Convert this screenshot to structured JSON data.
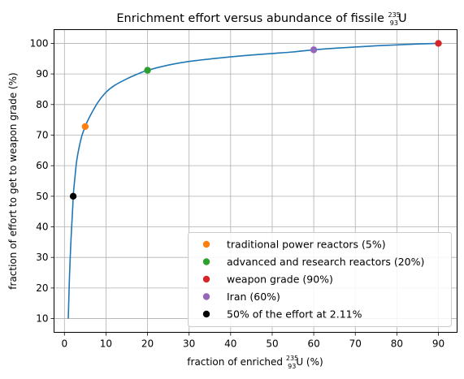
{
  "chart_data": {
    "type": "line",
    "title_main": "Enrichment effort versus abundance of fissile ",
    "title_mass": "235",
    "title_atomic": "93",
    "title_element": "U",
    "xlabel_main": "fraction of enriched ",
    "xlabel_mass": "235",
    "xlabel_atomic": "93",
    "xlabel_after": "U (%)",
    "ylabel": "fraction of effort to get to weapon grade (%)",
    "xlim": [
      -2.5,
      94.5
    ],
    "ylim": [
      5.5,
      104.5
    ],
    "xticks": [
      0,
      10,
      20,
      30,
      40,
      50,
      60,
      70,
      80,
      90
    ],
    "yticks": [
      10,
      20,
      30,
      40,
      50,
      60,
      70,
      80,
      90,
      100
    ],
    "grid": true,
    "legend_position": "lower right",
    "curve": {
      "color": "#1f77b4",
      "x": [
        0.93,
        1.0,
        1.2,
        1.5,
        2.0,
        2.11,
        2.5,
        3,
        4,
        5,
        6,
        8,
        10,
        12,
        15,
        18,
        20,
        25,
        30,
        35,
        40,
        45,
        50,
        55,
        60,
        65,
        70,
        75,
        80,
        85,
        90
      ],
      "y": [
        10.0,
        13.5,
        23.0,
        33.5,
        46.5,
        50.0,
        55.8,
        62.0,
        68.8,
        72.8,
        75.8,
        80.6,
        84.0,
        86.2,
        88.4,
        90.2,
        91.2,
        92.9,
        94.1,
        94.9,
        95.6,
        96.2,
        96.7,
        97.2,
        97.9,
        98.4,
        98.8,
        99.2,
        99.5,
        99.8,
        100.0
      ]
    },
    "series": [
      {
        "name": "traditional power reactors (5%)",
        "color": "#ff7f0e",
        "x": 5,
        "y": 72.8
      },
      {
        "name": "advanced and research reactors (20%)",
        "color": "#2ca02c",
        "x": 20,
        "y": 91.2
      },
      {
        "name": "weapon grade (90%)",
        "color": "#d62728",
        "x": 90,
        "y": 100.0
      },
      {
        "name": "Iran (60%)",
        "color": "#9467bd",
        "x": 60,
        "y": 97.9
      },
      {
        "name": "50% of the effort at 2.11%",
        "color": "#000000",
        "x": 2.11,
        "y": 50.0
      }
    ]
  }
}
